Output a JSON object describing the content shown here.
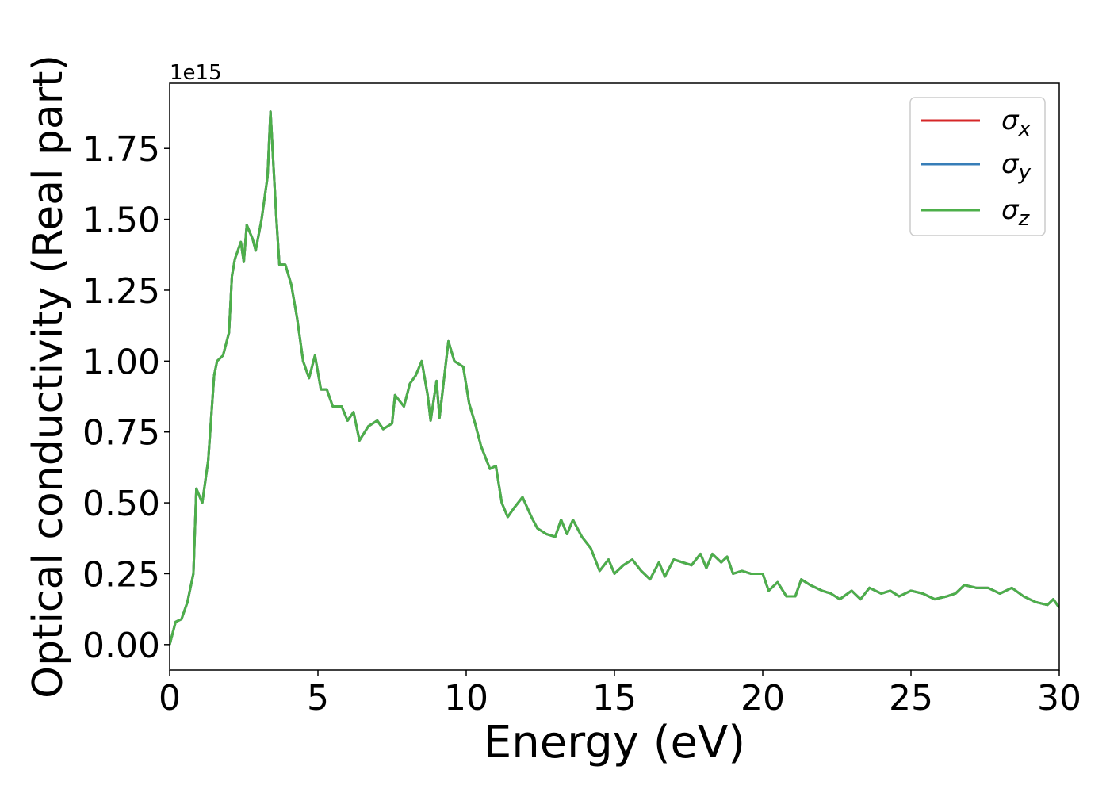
{
  "chart_data": {
    "type": "line",
    "x_label": "Energy (eV)",
    "y_label": "Optical conductivity (Real part)",
    "y_offset_text": "1e15",
    "xlim": [
      0,
      30
    ],
    "xticks": [
      0,
      5,
      10,
      15,
      20,
      25,
      30
    ],
    "ylim": [
      -0.09,
      1.98
    ],
    "yticks": [
      {
        "value": 0,
        "label": "0.00"
      },
      0.25,
      {
        "value": 0.5,
        "label": "0.50"
      },
      0.75,
      {
        "value": 1,
        "label": "1.00"
      },
      1.25,
      {
        "value": 1.5,
        "label": "1.50"
      },
      1.75
    ],
    "legend": "upper right",
    "x": [
      0,
      0.2,
      0.4,
      0.6,
      0.8,
      0.9,
      1.1,
      1.3,
      1.5,
      1.6,
      1.8,
      2.0,
      2.1,
      2.2,
      2.4,
      2.5,
      2.6,
      2.8,
      2.9,
      3.1,
      3.3,
      3.4,
      3.6,
      3.7,
      3.9,
      4.1,
      4.3,
      4.5,
      4.7,
      4.9,
      5.1,
      5.3,
      5.5,
      5.8,
      6.0,
      6.2,
      6.4,
      6.7,
      7.0,
      7.2,
      7.5,
      7.6,
      7.9,
      8.1,
      8.3,
      8.5,
      8.7,
      8.8,
      9.0,
      9.1,
      9.4,
      9.6,
      9.9,
      10.1,
      10.3,
      10.5,
      10.8,
      11.0,
      11.2,
      11.4,
      11.6,
      11.9,
      12.2,
      12.4,
      12.7,
      13.0,
      13.2,
      13.4,
      13.6,
      13.9,
      14.2,
      14.5,
      14.8,
      15.0,
      15.3,
      15.6,
      15.9,
      16.2,
      16.5,
      16.7,
      17.0,
      17.3,
      17.6,
      17.9,
      18.1,
      18.3,
      18.6,
      18.8,
      19.0,
      19.3,
      19.6,
      20.0,
      20.2,
      20.5,
      20.8,
      21.1,
      21.3,
      21.6,
      22.0,
      22.3,
      22.6,
      23.0,
      23.3,
      23.6,
      24.0,
      24.3,
      24.6,
      25.0,
      25.4,
      25.8,
      26.2,
      26.5,
      26.8,
      27.2,
      27.6,
      28.0,
      28.4,
      28.8,
      29.2,
      29.6,
      29.8,
      30.0
    ],
    "series": [
      {
        "name": "σx",
        "color": "#d62728",
        "values": [
          0,
          0.08,
          0.09,
          0.15,
          0.25,
          0.55,
          0.5,
          0.65,
          0.95,
          1.0,
          1.02,
          1.1,
          1.3,
          1.36,
          1.42,
          1.35,
          1.48,
          1.43,
          1.39,
          1.5,
          1.65,
          1.88,
          1.5,
          1.34,
          1.34,
          1.27,
          1.15,
          1.0,
          0.94,
          1.02,
          0.9,
          0.9,
          0.84,
          0.84,
          0.79,
          0.82,
          0.72,
          0.77,
          0.79,
          0.76,
          0.78,
          0.88,
          0.84,
          0.92,
          0.95,
          1.0,
          0.88,
          0.79,
          0.93,
          0.8,
          1.07,
          1.0,
          0.98,
          0.85,
          0.78,
          0.7,
          0.62,
          0.63,
          0.5,
          0.45,
          0.48,
          0.52,
          0.45,
          0.41,
          0.39,
          0.38,
          0.44,
          0.39,
          0.44,
          0.38,
          0.34,
          0.26,
          0.3,
          0.25,
          0.28,
          0.3,
          0.26,
          0.23,
          0.29,
          0.24,
          0.3,
          0.29,
          0.28,
          0.32,
          0.27,
          0.32,
          0.29,
          0.31,
          0.25,
          0.26,
          0.25,
          0.25,
          0.19,
          0.22,
          0.17,
          0.17,
          0.23,
          0.21,
          0.19,
          0.18,
          0.16,
          0.19,
          0.16,
          0.2,
          0.18,
          0.19,
          0.17,
          0.19,
          0.18,
          0.16,
          0.17,
          0.18,
          0.21,
          0.2,
          0.2,
          0.18,
          0.2,
          0.17,
          0.15,
          0.14,
          0.16,
          0.13
        ]
      },
      {
        "name": "σy",
        "color": "#377eb8",
        "values": [
          0,
          0.08,
          0.09,
          0.15,
          0.25,
          0.55,
          0.5,
          0.65,
          0.95,
          1.0,
          1.02,
          1.1,
          1.3,
          1.36,
          1.42,
          1.35,
          1.48,
          1.43,
          1.39,
          1.5,
          1.65,
          1.88,
          1.5,
          1.34,
          1.34,
          1.27,
          1.15,
          1.0,
          0.94,
          1.02,
          0.9,
          0.9,
          0.84,
          0.84,
          0.79,
          0.82,
          0.72,
          0.77,
          0.79,
          0.76,
          0.78,
          0.88,
          0.84,
          0.92,
          0.95,
          1.0,
          0.88,
          0.79,
          0.93,
          0.8,
          1.07,
          1.0,
          0.98,
          0.85,
          0.78,
          0.7,
          0.62,
          0.63,
          0.5,
          0.45,
          0.48,
          0.52,
          0.45,
          0.41,
          0.39,
          0.38,
          0.44,
          0.39,
          0.44,
          0.38,
          0.34,
          0.26,
          0.3,
          0.25,
          0.28,
          0.3,
          0.26,
          0.23,
          0.29,
          0.24,
          0.3,
          0.29,
          0.28,
          0.32,
          0.27,
          0.32,
          0.29,
          0.31,
          0.25,
          0.26,
          0.25,
          0.25,
          0.19,
          0.22,
          0.17,
          0.17,
          0.23,
          0.21,
          0.19,
          0.18,
          0.16,
          0.19,
          0.16,
          0.2,
          0.18,
          0.19,
          0.17,
          0.19,
          0.18,
          0.16,
          0.17,
          0.18,
          0.21,
          0.2,
          0.2,
          0.18,
          0.2,
          0.17,
          0.15,
          0.14,
          0.16,
          0.13
        ]
      },
      {
        "name": "σz",
        "color": "#4daf4a",
        "values": [
          0,
          0.08,
          0.09,
          0.15,
          0.25,
          0.55,
          0.5,
          0.65,
          0.95,
          1.0,
          1.02,
          1.1,
          1.3,
          1.36,
          1.42,
          1.35,
          1.48,
          1.43,
          1.39,
          1.5,
          1.65,
          1.88,
          1.5,
          1.34,
          1.34,
          1.27,
          1.15,
          1.0,
          0.94,
          1.02,
          0.9,
          0.9,
          0.84,
          0.84,
          0.79,
          0.82,
          0.72,
          0.77,
          0.79,
          0.76,
          0.78,
          0.88,
          0.84,
          0.92,
          0.95,
          1.0,
          0.88,
          0.79,
          0.93,
          0.8,
          1.07,
          1.0,
          0.98,
          0.85,
          0.78,
          0.7,
          0.62,
          0.63,
          0.5,
          0.45,
          0.48,
          0.52,
          0.45,
          0.41,
          0.39,
          0.38,
          0.44,
          0.39,
          0.44,
          0.38,
          0.34,
          0.26,
          0.3,
          0.25,
          0.28,
          0.3,
          0.26,
          0.23,
          0.29,
          0.24,
          0.3,
          0.29,
          0.28,
          0.32,
          0.27,
          0.32,
          0.29,
          0.31,
          0.25,
          0.26,
          0.25,
          0.25,
          0.19,
          0.22,
          0.17,
          0.17,
          0.23,
          0.21,
          0.19,
          0.18,
          0.16,
          0.19,
          0.16,
          0.2,
          0.18,
          0.19,
          0.17,
          0.19,
          0.18,
          0.16,
          0.17,
          0.18,
          0.21,
          0.2,
          0.2,
          0.18,
          0.2,
          0.17,
          0.15,
          0.14,
          0.16,
          0.13
        ]
      }
    ]
  }
}
